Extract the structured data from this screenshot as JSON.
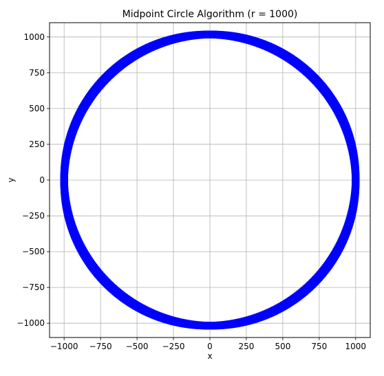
{
  "chart_data": {
    "type": "scatter",
    "title": "Midpoint Circle Algorithm (r = 1000)",
    "xlabel": "x",
    "ylabel": "y",
    "xlim": [
      -1100,
      1100
    ],
    "ylim": [
      -1100,
      1100
    ],
    "xticks": [
      -1000,
      -750,
      -500,
      -250,
      0,
      250,
      500,
      750,
      1000
    ],
    "yticks": [
      -1000,
      -750,
      -500,
      -250,
      0,
      250,
      500,
      750,
      1000
    ],
    "xtick_labels": [
      "−1000",
      "−750",
      "−500",
      "−250",
      "0",
      "250",
      "500",
      "750",
      "1000"
    ],
    "ytick_labels": [
      "−1000",
      "−750",
      "−500",
      "−250",
      "0",
      "250",
      "500",
      "750",
      "1000"
    ],
    "grid": true,
    "series": [
      {
        "radius": 1000,
        "center": [
          0,
          0
        ],
        "color": "#0000ff",
        "marker": "filled square points"
      }
    ]
  }
}
